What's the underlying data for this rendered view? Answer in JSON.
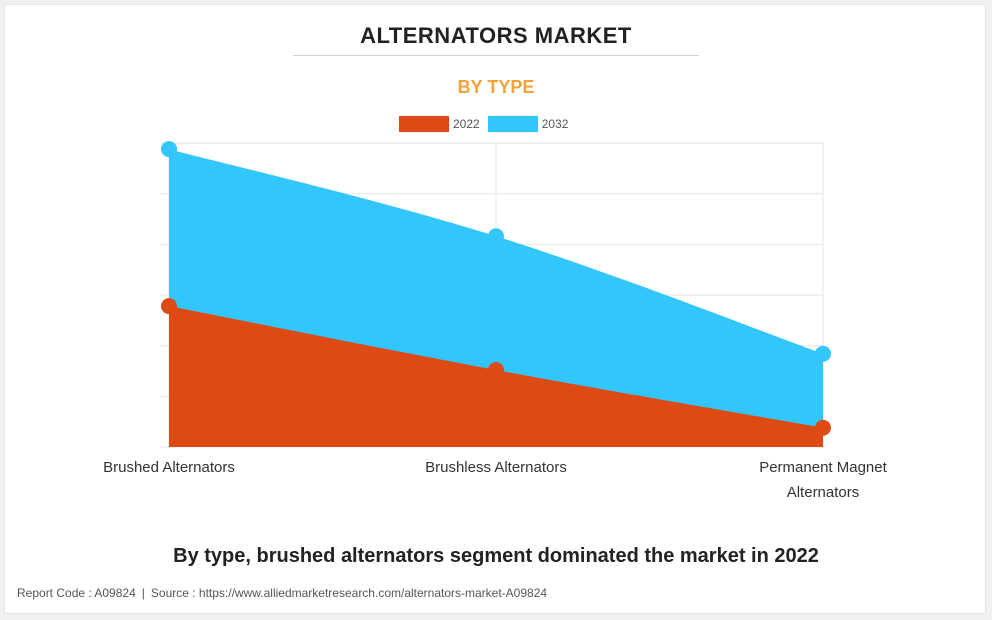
{
  "header": {
    "title": "ALTERNATORS MARKET",
    "subtitle": "BY TYPE"
  },
  "colors": {
    "series_2022": "#de4a14",
    "series_2032": "#33c6fc",
    "subtitle": "#f2a33a"
  },
  "chart_data": {
    "type": "area",
    "categories": [
      "Brushed Alternators",
      "Brushless Alternators",
      "Permanent Magnet Alternators"
    ],
    "category_labels": [
      [
        "Brushed Alternators"
      ],
      [
        "Brushless Alternators"
      ],
      [
        "Permanent Magnet",
        "Alternators"
      ]
    ],
    "series": [
      {
        "name": "2022",
        "values": [
          1.39,
          0.76,
          0.19
        ],
        "color": "#de4a14"
      },
      {
        "name": "2032",
        "values": [
          2.94,
          2.08,
          0.92
        ],
        "color": "#33c6fc"
      }
    ],
    "ylim": [
      0,
      3.0
    ],
    "y_gridlines": 6,
    "grid": true,
    "stacked": false,
    "y_tick_labels_shown": false,
    "legend_position": "top-center",
    "title": "ALTERNATORS MARKET",
    "subtitle": "BY TYPE"
  },
  "caption": "By type, brushed alternators segment dominated the market in 2022",
  "footer": {
    "report_code": "Report Code : A09824",
    "separator": "|",
    "source": "Source : https://www.alliedmarketresearch.com/alternators-market-A09824"
  }
}
